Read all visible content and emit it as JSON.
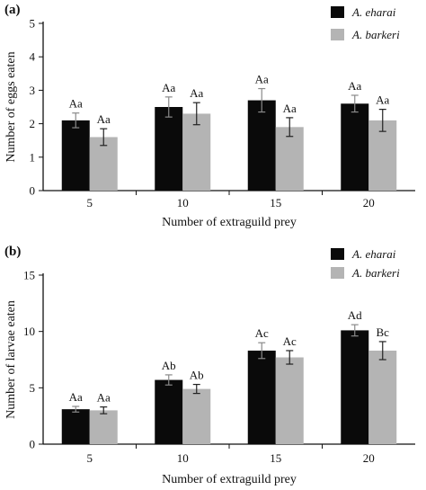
{
  "figure": {
    "colors": {
      "bar_dark": "#0a0a0a",
      "bar_light": "#b4b4b4",
      "axis": "#111111"
    }
  },
  "chart_data": [
    {
      "panel_label": "(a)",
      "type": "bar",
      "categories": [
        "5",
        "10",
        "15",
        "20"
      ],
      "xlabel": "Number of extraguild prey",
      "ylabel": "Number of  eggs eaten",
      "ylim": [
        0,
        5
      ],
      "yticks": [
        "0",
        "1",
        "2",
        "3",
        "4",
        "5"
      ],
      "grid": false,
      "legend_position": "top-right",
      "series": [
        {
          "name": "A. eharai",
          "color": "#0a0a0a",
          "values": [
            2.1,
            2.5,
            2.7,
            2.6
          ],
          "errors": [
            0.22,
            0.3,
            0.35,
            0.25
          ],
          "labels": [
            "Aa",
            "Aa",
            "Aa",
            "Aa"
          ]
        },
        {
          "name": "A. barkeri",
          "color": "#b4b4b4",
          "values": [
            1.6,
            2.3,
            1.9,
            2.1
          ],
          "errors": [
            0.25,
            0.33,
            0.28,
            0.33
          ],
          "labels": [
            "Aa",
            "Aa",
            "Aa",
            "Aa"
          ]
        }
      ]
    },
    {
      "panel_label": "(b)",
      "type": "bar",
      "categories": [
        "5",
        "10",
        "15",
        "20"
      ],
      "xlabel": "Number of extraguild prey",
      "ylabel": "Number of  larvae eaten",
      "ylim": [
        0,
        15
      ],
      "yticks": [
        "0",
        "5",
        "10",
        "15"
      ],
      "grid": false,
      "legend_position": "top-right",
      "series": [
        {
          "name": "A. eharai",
          "color": "#0a0a0a",
          "values": [
            3.1,
            5.7,
            8.3,
            10.1
          ],
          "errors": [
            0.25,
            0.45,
            0.7,
            0.5
          ],
          "labels": [
            "Aa",
            "Ab",
            "Ac",
            "Ad"
          ]
        },
        {
          "name": "A. barkeri",
          "color": "#b4b4b4",
          "values": [
            3.0,
            4.9,
            7.7,
            8.3
          ],
          "errors": [
            0.3,
            0.4,
            0.6,
            0.8
          ],
          "labels": [
            "Aa",
            "Ab",
            "Ac",
            "Bc"
          ]
        }
      ]
    }
  ]
}
